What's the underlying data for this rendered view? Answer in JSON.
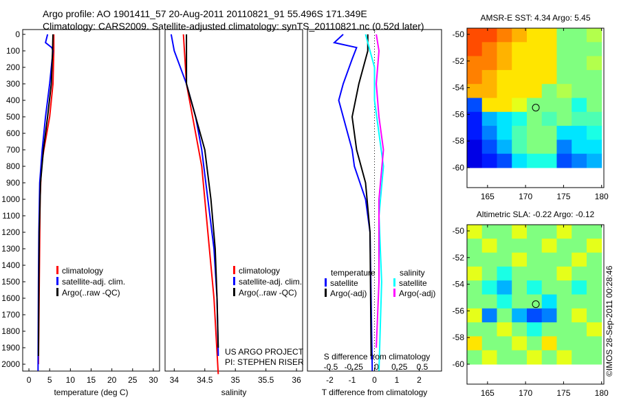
{
  "title_line1": "Argo profile: AO 1901411_57 20-Aug-2011 20110821_91 55.496S 171.349E",
  "title_line2": "Climatology: CARS2009. Satellite-adjusted climatology: synTS_20110821.nc (0.52d later)",
  "credit": "US ARGO PROJECT",
  "pi": "PI: STEPHEN RISER",
  "stamp": "©IMOS 28-Sep-2011 00:28:46",
  "colors": {
    "red": "#ff0000",
    "blue": "#0000ff",
    "black": "#000000",
    "cyan": "#00ffff",
    "magenta": "#ff00ff"
  },
  "chart_data": [
    {
      "type": "line",
      "xlabel": "temperature (deg C)",
      "xlim": [
        -1.5,
        31.5
      ],
      "ylim": [
        2060,
        0
      ],
      "xticks": [
        0,
        5,
        10,
        15,
        20,
        25,
        30
      ],
      "yticks": [
        0,
        100,
        200,
        300,
        400,
        500,
        600,
        700,
        800,
        900,
        1000,
        1100,
        1200,
        1300,
        1400,
        1500,
        1600,
        1700,
        1800,
        1900,
        2000
      ],
      "legend": [
        "climatology",
        "satellite-adj. clim.",
        "Argo(..raw -QC)"
      ],
      "series": [
        {
          "name": "climatology",
          "color": "red",
          "depth": [
            0,
            100,
            300,
            500,
            700,
            800,
            1000,
            1500,
            2000
          ],
          "values": [
            6.0,
            6.0,
            5.8,
            5.0,
            3.6,
            3.0,
            2.7,
            2.5,
            2.3
          ]
        },
        {
          "name": "satellite-adj. clim.",
          "color": "blue",
          "depth": [
            0,
            50,
            80,
            100,
            300,
            500,
            700,
            900,
            1200,
            1500,
            2040
          ],
          "values": [
            4.5,
            4.0,
            5.5,
            5.8,
            5.0,
            4.0,
            3.2,
            2.6,
            2.4,
            2.3,
            2.2
          ]
        },
        {
          "name": "Argo(..raw -QC)",
          "color": "black",
          "depth": [
            0,
            100,
            300,
            500,
            700,
            900,
            1200,
            1500,
            1950
          ],
          "values": [
            5.8,
            5.7,
            5.4,
            4.5,
            3.5,
            2.8,
            2.5,
            2.4,
            2.3
          ]
        }
      ]
    },
    {
      "type": "line",
      "xlabel": "salinity",
      "xlim": [
        33.85,
        36.1
      ],
      "ylim": [
        2060,
        0
      ],
      "xticks": [
        34,
        34.5,
        35,
        35.5,
        36
      ],
      "legend": [
        "climatology",
        "satellite-adj. clim.",
        "Argo(..raw -QC)"
      ],
      "series": [
        {
          "name": "climatology",
          "color": "red",
          "depth": [
            0,
            300,
            500,
            800,
            1200,
            1600,
            2060
          ],
          "values": [
            34.15,
            34.2,
            34.3,
            34.45,
            34.55,
            34.65,
            34.72
          ]
        },
        {
          "name": "satellite-adj. clim.",
          "color": "blue",
          "depth": [
            0,
            100,
            300,
            500,
            700,
            1000,
            1300,
            1600,
            1950
          ],
          "values": [
            33.95,
            34.0,
            34.2,
            34.35,
            34.45,
            34.55,
            34.65,
            34.7,
            34.72
          ]
        },
        {
          "name": "Argo(..raw -QC)",
          "color": "black",
          "depth": [
            0,
            100,
            300,
            500,
            700,
            1000,
            1300,
            1600,
            1900
          ],
          "values": [
            34.2,
            34.2,
            34.2,
            34.35,
            34.5,
            34.6,
            34.67,
            34.7,
            34.72
          ]
        }
      ]
    },
    {
      "type": "line",
      "xlabel": "T difference from climatology",
      "xlabel2": "S difference from climatology",
      "xlim": [
        -3,
        3
      ],
      "ylim": [
        2060,
        0
      ],
      "xticks": [
        -2,
        -1,
        0,
        1,
        2
      ],
      "xticks2": [
        "-0.5",
        "-0.25",
        "0",
        "0.25",
        "0.5"
      ],
      "legend_headers": [
        "temperature",
        "salinity"
      ],
      "legend": [
        "satellite",
        "Argo(-adj)",
        "satellite",
        "Argo(-adj)"
      ],
      "series": [
        {
          "name": "T satellite",
          "color": "blue",
          "depth": [
            0,
            50,
            80,
            150,
            300,
            400,
            700,
            800,
            1000,
            1200,
            2040
          ],
          "values": [
            -1.4,
            -1.8,
            -0.8,
            -1.0,
            -1.4,
            -1.6,
            -1.0,
            -0.9,
            -0.4,
            -0.2,
            -0.1
          ]
        },
        {
          "name": "T Argo(-adj)",
          "color": "black",
          "depth": [
            0,
            100,
            200,
            300,
            500,
            700,
            900,
            1200,
            1950
          ],
          "values": [
            -0.3,
            -0.3,
            -0.5,
            -0.7,
            -1.0,
            -0.8,
            -0.4,
            -0.2,
            -0.15
          ]
        },
        {
          "name": "S satellite",
          "color": "cyan",
          "depth": [
            0,
            100,
            200,
            400,
            600,
            800,
            1100,
            1500,
            2040
          ],
          "values": [
            -0.1,
            -0.05,
            0,
            0,
            0.05,
            0.1,
            0.05,
            0.08,
            0.05
          ]
        },
        {
          "name": "S Argo(-adj)",
          "color": "magenta",
          "depth": [
            0,
            100,
            300,
            500,
            700,
            1000,
            1500,
            1900
          ],
          "values": [
            0.02,
            0.05,
            0.02,
            0.05,
            0.1,
            0.05,
            0.05,
            0.02
          ]
        }
      ]
    },
    {
      "type": "heatmap",
      "title": "AMSR-E SST: 4.34 Argo: 5.45",
      "xticks": [
        165,
        170,
        175,
        180
      ],
      "yticks": [
        -50,
        -52,
        -54,
        -56,
        -58,
        -60
      ],
      "lon": [
        162.3,
        180.3
      ],
      "lat": [
        -49.5,
        -60
      ],
      "vrange": [
        0,
        10
      ],
      "float": [
        171.349,
        -55.496
      ],
      "grid": [
        [
          8,
          8,
          7.5,
          7,
          6.5,
          6.5,
          5,
          5,
          5.5
        ],
        [
          8,
          7.5,
          7,
          6.5,
          6.5,
          6.5,
          5,
          5,
          5
        ],
        [
          7.5,
          7.5,
          7,
          6.5,
          6.5,
          6.5,
          5,
          5,
          5.5
        ],
        [
          7.5,
          7,
          6.5,
          6.5,
          6.5,
          6.5,
          5,
          5,
          5
        ],
        [
          7,
          7,
          6.5,
          6.5,
          6.5,
          5,
          5.5,
          5,
          5
        ],
        [
          2,
          6.5,
          6.5,
          6,
          5,
          5,
          5,
          4,
          5
        ],
        [
          1.5,
          3,
          3.5,
          4,
          5,
          4.5,
          5,
          4.5,
          4.5
        ],
        [
          1.5,
          2.5,
          3.5,
          4.5,
          5,
          5,
          3.5,
          3.5,
          4
        ],
        [
          1,
          2,
          3,
          4.5,
          5,
          5,
          2.5,
          3.5,
          3.5
        ],
        [
          1,
          1.5,
          2,
          3.5,
          4,
          4,
          2,
          2.5,
          3
        ]
      ]
    },
    {
      "type": "heatmap",
      "title": "Altimetric SLA: -0.22 Argo: -0.12",
      "xticks": [
        165,
        170,
        175,
        180
      ],
      "yticks": [
        -50,
        -52,
        -54,
        -56,
        -58,
        -60
      ],
      "lon": [
        162.3,
        180.3
      ],
      "lat": [
        -49.5,
        -60
      ],
      "vrange": [
        -0.5,
        0.5
      ],
      "float": [
        171.349,
        -55.496
      ],
      "grid": [
        [
          0.1,
          0,
          0,
          0.1,
          0,
          0,
          0.1,
          0,
          0
        ],
        [
          0,
          0.1,
          0,
          0,
          0,
          0.1,
          0,
          0,
          0.1
        ],
        [
          0,
          0,
          0,
          0.1,
          0,
          0,
          0,
          0.1,
          0
        ],
        [
          0.1,
          0,
          -0.1,
          0,
          0,
          0,
          0.1,
          0,
          0
        ],
        [
          0,
          -0.1,
          -0.2,
          0,
          -0.1,
          0,
          0,
          -0.1,
          0
        ],
        [
          0,
          0,
          -0.1,
          0,
          0,
          -0.15,
          0,
          0,
          0
        ],
        [
          0.1,
          -0.25,
          0,
          -0.2,
          -0.3,
          -0.25,
          0,
          0.1,
          0
        ],
        [
          0,
          0,
          0.1,
          0,
          -0.1,
          0,
          0,
          0,
          0.1
        ],
        [
          0.15,
          0,
          0,
          0.1,
          0,
          0.15,
          0,
          0,
          0
        ],
        [
          0,
          0.1,
          0,
          0,
          0.1,
          0,
          0.1,
          0,
          0
        ]
      ]
    }
  ]
}
